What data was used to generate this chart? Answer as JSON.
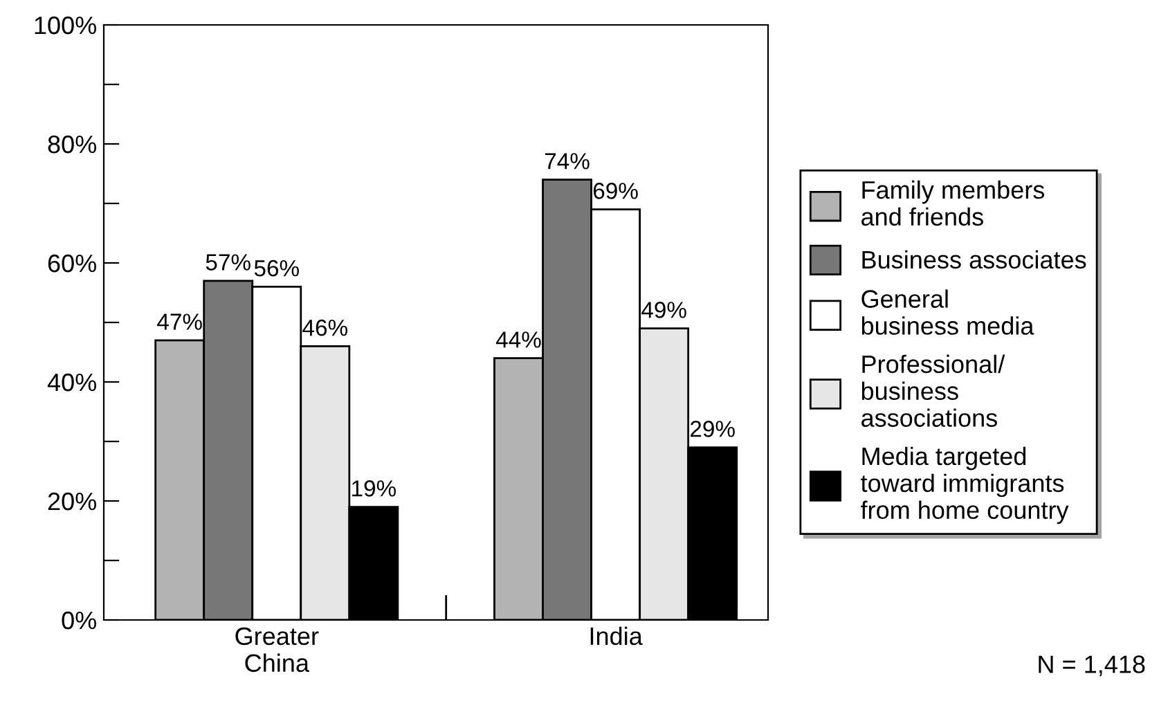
{
  "chart_data": {
    "type": "bar",
    "categories": [
      "Greater\nChina",
      "India"
    ],
    "series": [
      {
        "name": "Family members\nand friends",
        "color": "#b3b3b3",
        "values": [
          47,
          44
        ],
        "value_labels": [
          "47%",
          "44%"
        ]
      },
      {
        "name": "Business associates",
        "color": "#777777",
        "values": [
          57,
          74
        ],
        "value_labels": [
          "57%",
          "74%"
        ]
      },
      {
        "name": "General\nbusiness media",
        "color": "#ffffff",
        "values": [
          56,
          69
        ],
        "value_labels": [
          "56%",
          "69%"
        ]
      },
      {
        "name": "Professional/\nbusiness\nassociations",
        "color": "#e6e6e6",
        "values": [
          46,
          49
        ],
        "value_labels": [
          "46%",
          "49%"
        ]
      },
      {
        "name": "Media targeted\ntoward immigrants\nfrom home country",
        "color": "#000000",
        "values": [
          19,
          29
        ],
        "value_labels": [
          "19%",
          "29%"
        ]
      }
    ],
    "ylim": [
      0,
      100
    ],
    "yticks": [
      {
        "value": 0,
        "label": "0%"
      },
      {
        "value": 10,
        "label": null
      },
      {
        "value": 20,
        "label": "20%"
      },
      {
        "value": 30,
        "label": null
      },
      {
        "value": 40,
        "label": "40%"
      },
      {
        "value": 50,
        "label": null
      },
      {
        "value": 60,
        "label": "60%"
      },
      {
        "value": 70,
        "label": null
      },
      {
        "value": 80,
        "label": "80%"
      },
      {
        "value": 90,
        "label": null
      },
      {
        "value": 100,
        "label": "100%"
      }
    ],
    "legend": "right",
    "grid": false,
    "annotations": [
      "N = 1,418"
    ]
  }
}
